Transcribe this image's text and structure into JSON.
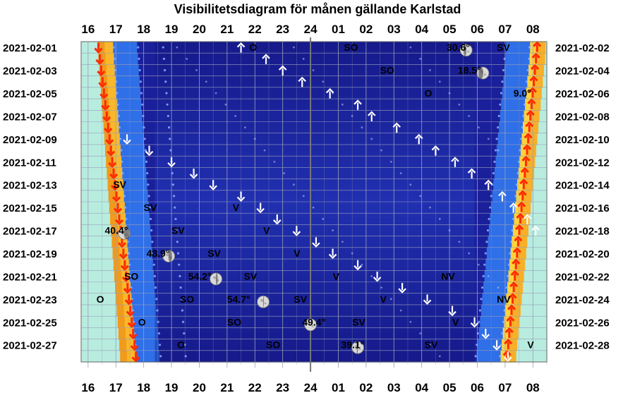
{
  "chart_data": {
    "type": "heatmap",
    "title": "Visibilitetsdiagram för månen gällande Karlstad",
    "hour_labels": [
      "16",
      "17",
      "18",
      "19",
      "20",
      "21",
      "22",
      "23",
      "24",
      "01",
      "02",
      "03",
      "04",
      "05",
      "06",
      "07",
      "08"
    ],
    "date_labels_left": [
      "2021-02-01",
      "2021-02-03",
      "2021-02-05",
      "2021-02-07",
      "2021-02-09",
      "2021-02-11",
      "2021-02-13",
      "2021-02-15",
      "2021-02-17",
      "2021-02-19",
      "2021-02-21",
      "2021-02-23",
      "2021-02-25",
      "2021-02-27"
    ],
    "date_labels_right": [
      "2021-02-02",
      "2021-02-04",
      "2021-02-06",
      "2021-02-08",
      "2021-02-10",
      "2021-02-12",
      "2021-02-14",
      "2021-02-16",
      "2021-02-18",
      "2021-02-20",
      "2021-02-22",
      "2021-02-24",
      "2021-02-26",
      "2021-02-28"
    ],
    "twilight": {
      "sunset_edge_hours": [
        16.9,
        16.93,
        16.96,
        16.99,
        17.02,
        17.05,
        17.08,
        17.11,
        17.14,
        17.17,
        17.2,
        17.23,
        17.26,
        17.29,
        17.32,
        17.35,
        17.38,
        17.41,
        17.44,
        17.47,
        17.5,
        17.53,
        17.56,
        17.59,
        17.62,
        17.65,
        17.68,
        17.71
      ],
      "sunrise_edge_hours": [
        31.9,
        31.88,
        31.84,
        31.8,
        31.76,
        31.72,
        31.68,
        31.64,
        31.6,
        31.56,
        31.52,
        31.48,
        31.44,
        31.4,
        31.36,
        31.32,
        31.28,
        31.24,
        31.2,
        31.16,
        31.12,
        31.08,
        31.04,
        31.0,
        30.96,
        30.92,
        30.88,
        30.84
      ]
    },
    "sun": {
      "sunset_arrow_hours": [
        16.37,
        16.42,
        16.47,
        16.52,
        16.57,
        16.62,
        16.67,
        16.72,
        16.77,
        16.82,
        16.87,
        16.92,
        16.97,
        17.02,
        17.07,
        17.12,
        17.17,
        17.22,
        17.27,
        17.32,
        17.37,
        17.42,
        17.47,
        17.52,
        17.57,
        17.62,
        17.67,
        17.72
      ],
      "sunrise_arrow_hours": [
        32.15,
        32.11,
        32.07,
        32.03,
        31.99,
        31.95,
        31.91,
        31.87,
        31.83,
        31.79,
        31.75,
        31.71,
        31.67,
        31.63,
        31.59,
        31.55,
        31.51,
        31.47,
        31.43,
        31.39,
        31.35,
        31.31,
        31.27,
        31.23,
        31.19,
        31.15,
        31.11,
        31.07
      ]
    },
    "moon_rise_hours": [
      21.5,
      22.4,
      23.0,
      23.7,
      24.7,
      25.7,
      26.2,
      27.1,
      27.9,
      28.5,
      29.2,
      29.8,
      30.4,
      30.9,
      31.3,
      31.8,
      32.1
    ],
    "moon_set_hours": [
      17.4,
      18.2,
      19.0,
      19.8,
      20.5,
      21.5,
      22.2,
      22.8,
      23.5,
      24.2,
      24.8,
      25.7,
      26.4,
      27.3,
      28.2,
      29.1,
      29.9,
      30.3,
      30.7,
      31.1
    ],
    "moon_labels": [
      {
        "label": "O",
        "date": "2021-02-01",
        "hour": 21.8
      },
      {
        "label": "SO",
        "date": "2021-02-01",
        "hour": 25.2
      },
      {
        "label": "30.6°",
        "date": "2021-02-01",
        "hour": 28.9
      },
      {
        "label": "SV",
        "date": "2021-02-01",
        "hour": 30.7
      },
      {
        "label": "SO",
        "date": "2021-02-03",
        "hour": 26.5
      },
      {
        "label": "18.5°",
        "date": "2021-02-03",
        "hour": 29.3
      },
      {
        "label": "O",
        "date": "2021-02-05",
        "hour": 28.1
      },
      {
        "label": "9.0°",
        "date": "2021-02-05",
        "hour": 31.3
      },
      {
        "label": "SV",
        "date": "2021-02-13",
        "hour": 16.9
      },
      {
        "label": "SV",
        "date": "2021-02-15",
        "hour": 18.0
      },
      {
        "label": "V",
        "date": "2021-02-15",
        "hour": 21.2
      },
      {
        "label": "40.4°",
        "date": "2021-02-17",
        "hour": 16.6
      },
      {
        "label": "SV",
        "date": "2021-02-17",
        "hour": 19.0
      },
      {
        "label": "V",
        "date": "2021-02-17",
        "hour": 22.3
      },
      {
        "label": "48.9°",
        "date": "2021-02-19",
        "hour": 18.1
      },
      {
        "label": "SV",
        "date": "2021-02-19",
        "hour": 20.3
      },
      {
        "label": "V",
        "date": "2021-02-19",
        "hour": 23.4
      },
      {
        "label": "SO",
        "date": "2021-02-21",
        "hour": 17.3
      },
      {
        "label": "54.2°",
        "date": "2021-02-21",
        "hour": 19.6
      },
      {
        "label": "SV",
        "date": "2021-02-21",
        "hour": 21.6
      },
      {
        "label": "V",
        "date": "2021-02-21",
        "hour": 24.8
      },
      {
        "label": "NV",
        "date": "2021-02-21",
        "hour": 28.7
      },
      {
        "label": "O",
        "date": "2021-02-23",
        "hour": 16.3
      },
      {
        "label": "SO",
        "date": "2021-02-23",
        "hour": 19.3
      },
      {
        "label": "54.7°",
        "date": "2021-02-23",
        "hour": 21.0
      },
      {
        "label": "SV",
        "date": "2021-02-23",
        "hour": 23.4
      },
      {
        "label": "V",
        "date": "2021-02-23",
        "hour": 26.5
      },
      {
        "label": "NV",
        "date": "2021-02-23",
        "hour": 30.7
      },
      {
        "label": "O",
        "date": "2021-02-25",
        "hour": 17.8
      },
      {
        "label": "SO",
        "date": "2021-02-25",
        "hour": 21.0
      },
      {
        "label": "49.4°",
        "date": "2021-02-25",
        "hour": 23.7
      },
      {
        "label": "SV",
        "date": "2021-02-25",
        "hour": 25.5
      },
      {
        "label": "V",
        "date": "2021-02-25",
        "hour": 29.1
      },
      {
        "label": "O",
        "date": "2021-02-27",
        "hour": 19.2
      },
      {
        "label": "SO",
        "date": "2021-02-27",
        "hour": 22.4
      },
      {
        "label": "39.1°",
        "date": "2021-02-27",
        "hour": 25.1
      },
      {
        "label": "SV",
        "date": "2021-02-27",
        "hour": 28.1
      },
      {
        "label": "V",
        "date": "2021-02-27",
        "hour": 31.8
      }
    ],
    "moon_icons": [
      {
        "date": "2021-02-01",
        "hour": 29.6,
        "phase": 0.62
      },
      {
        "date": "2021-02-03",
        "hour": 30.2,
        "phase": 0.7
      },
      {
        "date": "2021-02-17",
        "hour": 17.3,
        "phase": 0.25
      },
      {
        "date": "2021-02-19",
        "hour": 18.9,
        "phase": 0.35
      },
      {
        "date": "2021-02-21",
        "hour": 20.6,
        "phase": 0.42
      },
      {
        "date": "2021-02-23",
        "hour": 22.3,
        "phase": 0.47
      },
      {
        "date": "2021-02-25",
        "hour": 24.0,
        "phase": 0.5
      },
      {
        "date": "2021-02-27",
        "hour": 25.7,
        "phase": 0.55
      }
    ],
    "colors": {
      "night": "#1a1f9a",
      "twilight_blue": "#2f6fe8",
      "dusk_orange": "#f29a1a",
      "dawn_yellow": "#ffd23a",
      "day": "#b8ecdf",
      "sun_arrow": "#ff2a00",
      "midnight_line": "#777777"
    }
  }
}
